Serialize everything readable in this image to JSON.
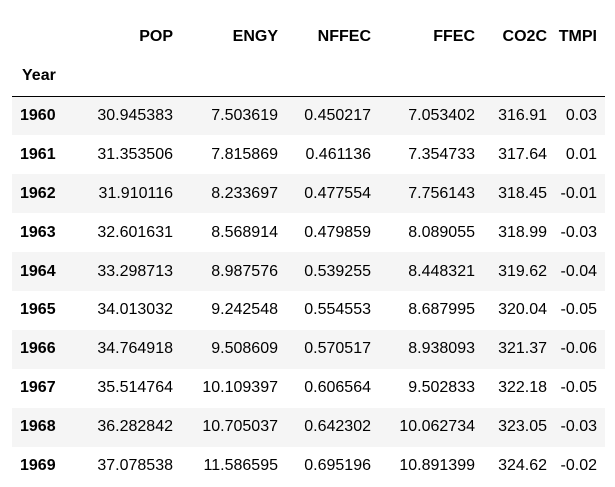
{
  "table": {
    "index_name": "Year",
    "columns": [
      "POP",
      "ENGY",
      "NFFEC",
      "FFEC",
      "CO2C",
      "TMPI"
    ],
    "rows": [
      {
        "year": "1960",
        "values": [
          "30.945383",
          "7.503619",
          "0.450217",
          "7.053402",
          "316.91",
          "0.03"
        ]
      },
      {
        "year": "1961",
        "values": [
          "31.353506",
          "7.815869",
          "0.461136",
          "7.354733",
          "317.64",
          "0.01"
        ]
      },
      {
        "year": "1962",
        "values": [
          "31.910116",
          "8.233697",
          "0.477554",
          "7.756143",
          "318.45",
          "-0.01"
        ]
      },
      {
        "year": "1963",
        "values": [
          "32.601631",
          "8.568914",
          "0.479859",
          "8.089055",
          "318.99",
          "-0.03"
        ]
      },
      {
        "year": "1964",
        "values": [
          "33.298713",
          "8.987576",
          "0.539255",
          "8.448321",
          "319.62",
          "-0.04"
        ]
      },
      {
        "year": "1965",
        "values": [
          "34.013032",
          "9.242548",
          "0.554553",
          "8.687995",
          "320.04",
          "-0.05"
        ]
      },
      {
        "year": "1966",
        "values": [
          "34.764918",
          "9.508609",
          "0.570517",
          "8.938093",
          "321.37",
          "-0.06"
        ]
      },
      {
        "year": "1967",
        "values": [
          "35.514764",
          "10.109397",
          "0.606564",
          "9.502833",
          "322.18",
          "-0.05"
        ]
      },
      {
        "year": "1968",
        "values": [
          "36.282842",
          "10.705037",
          "0.642302",
          "10.062734",
          "323.05",
          "-0.03"
        ]
      },
      {
        "year": "1969",
        "values": [
          "37.078538",
          "11.586595",
          "0.695196",
          "10.891399",
          "324.62",
          "-0.02"
        ]
      }
    ]
  }
}
